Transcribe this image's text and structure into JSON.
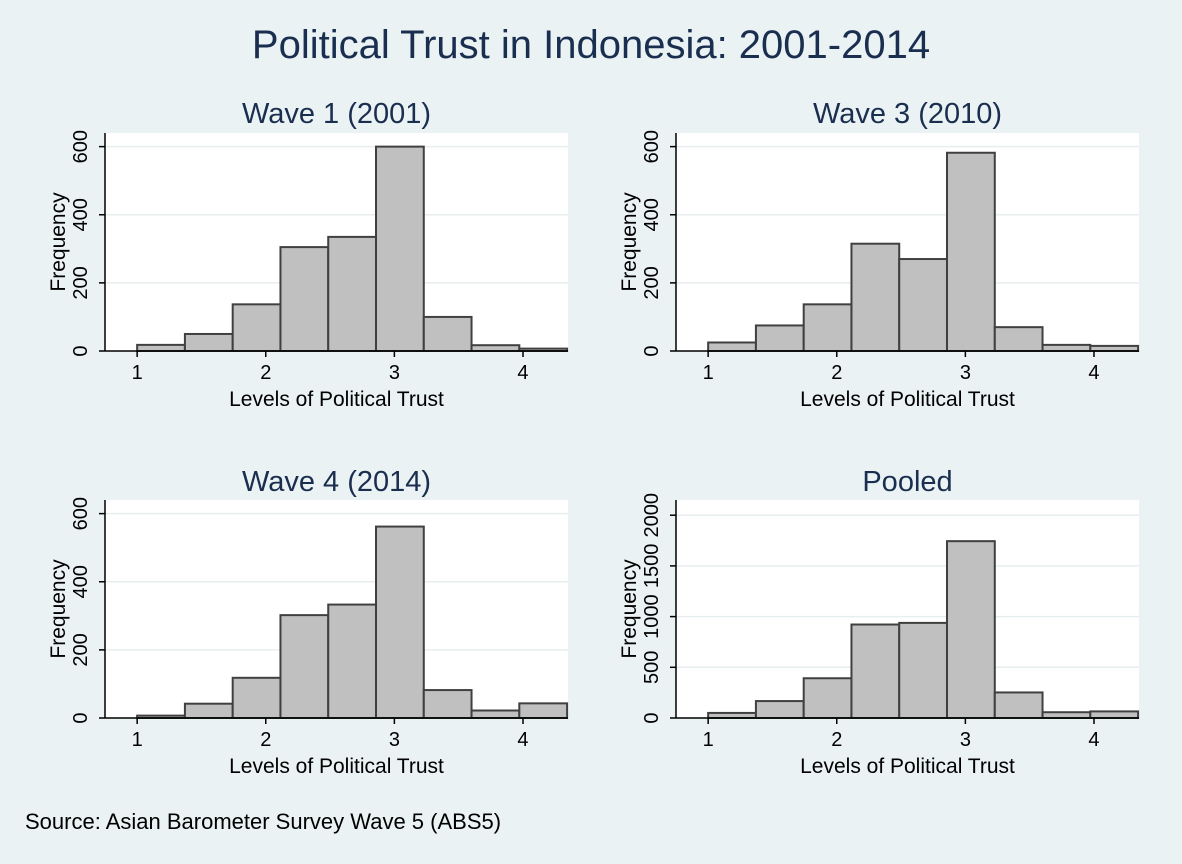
{
  "figure": {
    "title": "Political Trust in Indonesia: 2001-2014",
    "source_note": "Source: Asian Barometer Survey Wave 5 (ABS5)"
  },
  "colors": {
    "background": "#eaf2f3",
    "plot_area": "#ffffff",
    "bar_fill": "#c0c0c0",
    "bar_stroke": "#404040",
    "title": "#1a2e4f",
    "grid": "#e6eeef"
  },
  "chart_data": [
    {
      "type": "bar",
      "title": "Wave 1 (2001)",
      "xlabel": "Levels of Political Trust",
      "ylabel": "Frequency",
      "xlim": [
        0.75,
        4.35
      ],
      "ylim": [
        0,
        640
      ],
      "xticks": [
        1,
        2,
        3,
        4
      ],
      "yticks": [
        0,
        200,
        400,
        600
      ],
      "grid": true,
      "bin_edges": [
        1.0,
        1.3714,
        1.7429,
        2.1143,
        2.4857,
        2.8571,
        3.2286,
        3.6,
        3.9714,
        4.3429
      ],
      "values": [
        18,
        50,
        137,
        305,
        335,
        600,
        100,
        17,
        7
      ]
    },
    {
      "type": "bar",
      "title": "Wave 3 (2010)",
      "xlabel": "Levels of Political Trust",
      "ylabel": "Frequency",
      "xlim": [
        0.75,
        4.35
      ],
      "ylim": [
        0,
        640
      ],
      "xticks": [
        1,
        2,
        3,
        4
      ],
      "yticks": [
        0,
        200,
        400,
        600
      ],
      "grid": true,
      "bin_edges": [
        1.0,
        1.3714,
        1.7429,
        2.1143,
        2.4857,
        2.8571,
        3.2286,
        3.6,
        3.9714,
        4.3429
      ],
      "values": [
        25,
        75,
        137,
        315,
        270,
        582,
        70,
        18,
        15
      ]
    },
    {
      "type": "bar",
      "title": "Wave 4 (2014)",
      "xlabel": "Levels of Political Trust",
      "ylabel": "Frequency",
      "xlim": [
        0.75,
        4.35
      ],
      "ylim": [
        0,
        640
      ],
      "xticks": [
        1,
        2,
        3,
        4
      ],
      "yticks": [
        0,
        200,
        400,
        600
      ],
      "grid": true,
      "bin_edges": [
        1.0,
        1.3714,
        1.7429,
        2.1143,
        2.4857,
        2.8571,
        3.2286,
        3.6,
        3.9714,
        4.3429
      ],
      "values": [
        7,
        42,
        118,
        302,
        333,
        562,
        82,
        22,
        43
      ]
    },
    {
      "type": "bar",
      "title": "Pooled",
      "xlabel": "Levels of Political Trust",
      "ylabel": "Frequency",
      "xlim": [
        0.75,
        4.35
      ],
      "ylim": [
        0,
        2150
      ],
      "xticks": [
        1,
        2,
        3,
        4
      ],
      "yticks": [
        0,
        500,
        1000,
        1500,
        2000
      ],
      "grid": true,
      "bin_edges": [
        1.0,
        1.3714,
        1.7429,
        2.1143,
        2.4857,
        2.8571,
        3.2286,
        3.6,
        3.9714,
        4.3429
      ],
      "values": [
        50,
        167,
        392,
        922,
        938,
        1744,
        252,
        57,
        65
      ]
    }
  ]
}
